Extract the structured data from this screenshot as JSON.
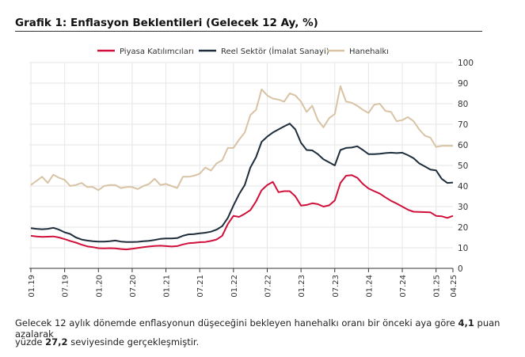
{
  "title": "Grafik 1: Enflasyon Beklentileri (Gelecek 12 Ay, %)",
  "note": {
    "line1_a": "Gelecek 12 aylık dönemde enflasyonun düşeceğini bekleyen hanehalkı oranı bir önceki aya göre ",
    "line1_b": "4,1",
    "line1_c": " puan azalarak",
    "line2_a": "yüzde ",
    "line2_b": "27,2",
    "line2_c": " seviyesinde gerçekleşmiştir."
  },
  "chart_data": {
    "type": "line",
    "ylim": [
      0,
      100
    ],
    "yticks": [
      0,
      10,
      20,
      30,
      40,
      50,
      60,
      70,
      80,
      90,
      100
    ],
    "xtick_labels": [
      "01.19",
      "07.19",
      "01.20",
      "07.20",
      "01.21",
      "07.21",
      "01.22",
      "07.22",
      "01.23",
      "07.23",
      "01.24",
      "07.24",
      "01.25",
      "04.25"
    ],
    "x_start": "01.19",
    "x_end": "04.25",
    "x_step": "monthly",
    "grid": true,
    "legend": "top",
    "series": [
      {
        "name": "Piyasa Katılımcıları",
        "color": "#d0103a",
        "values": [
          15.8,
          15.5,
          15.3,
          15.4,
          15.5,
          15,
          14.2,
          13.3,
          12.5,
          11.5,
          10.7,
          10.3,
          9.8,
          9.7,
          9.8,
          9.7,
          9.4,
          9.2,
          9.5,
          9.9,
          10.3,
          10.6,
          10.9,
          11,
          10.8,
          10.6,
          10.8,
          11.6,
          12.2,
          12.4,
          12.7,
          12.8,
          13.3,
          14,
          15.8,
          21.5,
          25.5,
          25,
          26.5,
          28.3,
          32.5,
          38,
          40.5,
          42,
          37,
          37.5,
          37.5,
          35,
          30.5,
          30.8,
          31.6,
          31.2,
          30,
          30.6,
          33,
          41.5,
          45,
          45.3,
          44,
          41,
          38.8,
          37.5,
          36.3,
          34.5,
          32.8,
          31.5,
          30,
          28.5,
          27.5,
          27.4,
          27.3,
          27.2,
          25.5,
          25.3,
          24.5,
          25.5
        ]
      },
      {
        "name": "Reel Sektör (İmalat Sanayi)",
        "color": "#1e2d3b",
        "values": [
          19.5,
          19.2,
          19,
          19.2,
          19.7,
          18.8,
          17.5,
          16.7,
          15,
          14,
          13.5,
          13.2,
          13,
          13,
          13.2,
          13.5,
          13,
          12.8,
          12.8,
          12.9,
          13.2,
          13.4,
          13.8,
          14.3,
          14.5,
          14.5,
          14.7,
          15.8,
          16.5,
          16.6,
          17,
          17.3,
          17.8,
          18.8,
          20.5,
          24.5,
          30.5,
          36,
          40.5,
          49,
          54,
          61.5,
          64,
          66,
          67.5,
          69,
          70.3,
          67.5,
          61,
          57.5,
          57.3,
          55.5,
          53,
          51.5,
          50,
          57.5,
          58.5,
          58.7,
          59.3,
          57.5,
          55.5,
          55.5,
          55.7,
          56,
          56.2,
          56,
          56.2,
          55,
          53.5,
          51,
          49.5,
          48,
          47.6,
          43.5,
          41.5,
          41.7
        ]
      },
      {
        "name": "Hanehalkı",
        "color": "#d8c3a5",
        "values": [
          40.5,
          42.5,
          44.5,
          41.5,
          45.5,
          44,
          43,
          40,
          40.5,
          41.5,
          39.5,
          39.5,
          38,
          40,
          40.5,
          40.5,
          39,
          39.5,
          39.5,
          38.5,
          40,
          41,
          43.5,
          40.5,
          41,
          40,
          39,
          44.5,
          44.5,
          45,
          46,
          49,
          47.5,
          51,
          52.5,
          58.5,
          58.5,
          62.5,
          66,
          74.5,
          77,
          87,
          84,
          82.5,
          82,
          81,
          85,
          84,
          81,
          76,
          79,
          72,
          68.5,
          73,
          75,
          88.5,
          81,
          80.5,
          79,
          77,
          75.5,
          79.5,
          80,
          76.5,
          76,
          71.5,
          72,
          73.5,
          71.5,
          67.5,
          64.5,
          63.5,
          59,
          59.5,
          59.5,
          59.5
        ]
      }
    ]
  }
}
